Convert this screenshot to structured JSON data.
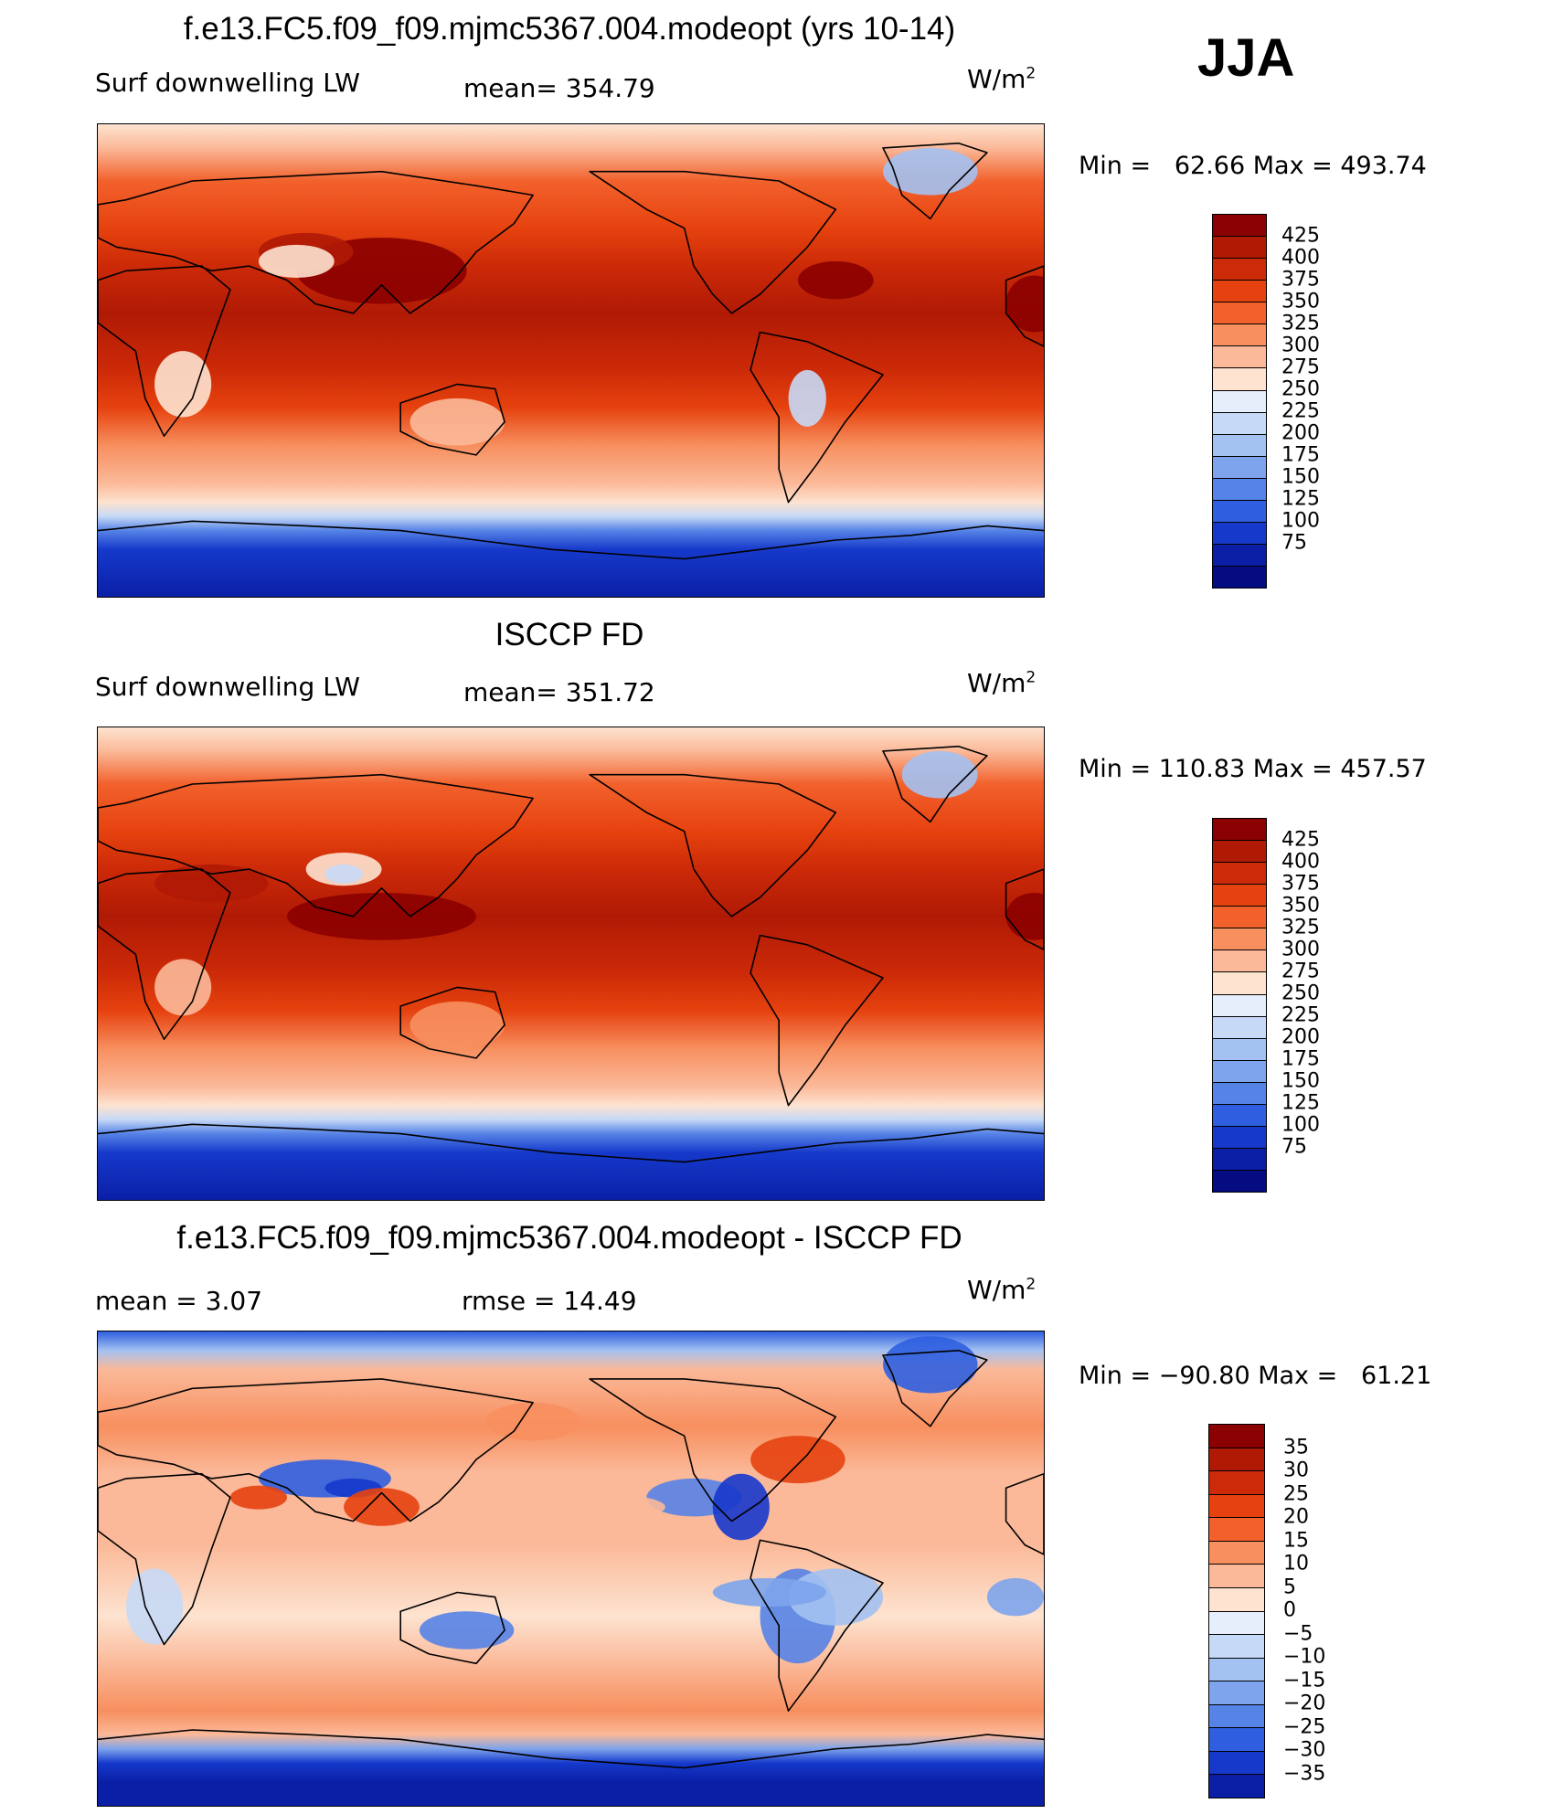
{
  "season": "JJA",
  "panels": [
    {
      "id": "model",
      "title": "f.e13.FC5.f09_f09.mjmc5367.004.modeopt (yrs 10-14)",
      "left_label": "Surf downwelling LW",
      "center_label": "mean= 354.79",
      "units_base": "W/m",
      "units_exp": "2",
      "minmax": "Min =   62.66 Max = 493.74",
      "map_kind": "abs",
      "variant": 0,
      "colorbar": {
        "colors": [
          "#8b0000",
          "#b01a05",
          "#cc2a08",
          "#e6420f",
          "#f2612c",
          "#f78f5f",
          "#fbb999",
          "#fde3d0",
          "#e6eefb",
          "#c6d9f6",
          "#a3c1f1",
          "#7da4ec",
          "#5683e6",
          "#2f5fe0",
          "#1639cb",
          "#0a1fa6",
          "#050b80"
        ],
        "ticks": [
          "425",
          "400",
          "375",
          "350",
          "325",
          "300",
          "275",
          "250",
          "225",
          "200",
          "175",
          "150",
          "125",
          "100",
          "75"
        ]
      }
    },
    {
      "id": "obs",
      "title": "ISCCP FD",
      "left_label": "Surf downwelling LW",
      "center_label": "mean= 351.72",
      "units_base": "W/m",
      "units_exp": "2",
      "minmax": "Min = 110.83 Max = 457.57",
      "map_kind": "abs",
      "variant": 1,
      "colorbar": {
        "colors": [
          "#8b0000",
          "#b01a05",
          "#cc2a08",
          "#e6420f",
          "#f2612c",
          "#f78f5f",
          "#fbb999",
          "#fde3d0",
          "#e6eefb",
          "#c6d9f6",
          "#a3c1f1",
          "#7da4ec",
          "#5683e6",
          "#2f5fe0",
          "#1639cb",
          "#0a1fa6",
          "#050b80"
        ],
        "ticks": [
          "425",
          "400",
          "375",
          "350",
          "325",
          "300",
          "275",
          "250",
          "225",
          "200",
          "175",
          "150",
          "125",
          "100",
          "75"
        ]
      }
    },
    {
      "id": "diff",
      "title": "f.e13.FC5.f09_f09.mjmc5367.004.modeopt - ISCCP FD",
      "left_label": "mean =    3.07",
      "center_label": "rmse =   14.49",
      "units_base": "W/m",
      "units_exp": "2",
      "minmax": "Min = −90.80 Max =   61.21",
      "map_kind": "diff",
      "variant": 2,
      "colorbar": {
        "colors": [
          "#8b0000",
          "#b01a05",
          "#cc2a08",
          "#e6420f",
          "#f2612c",
          "#f78f5f",
          "#fbb999",
          "#fde3d0",
          "#e6eefb",
          "#c6d9f6",
          "#a3c1f1",
          "#7da4ec",
          "#5683e6",
          "#2f5fe0",
          "#1639cb",
          "#0a1fa6"
        ],
        "ticks": [
          "35",
          "30",
          "25",
          "20",
          "15",
          "10",
          "5",
          "0",
          "−5",
          "−10",
          "−15",
          "−20",
          "−25",
          "−30",
          "−35"
        ]
      }
    }
  ]
}
